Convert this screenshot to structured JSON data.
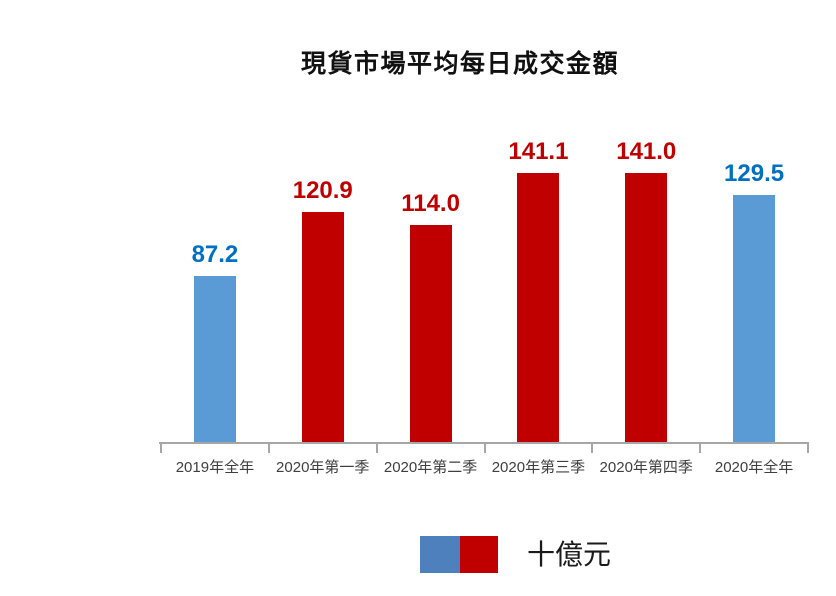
{
  "chart_data": {
    "type": "bar",
    "title": "現貨市場平均每日成交金額",
    "categories": [
      "2019年全年",
      "2020年第一季",
      "2020年第二季",
      "2020年第三季",
      "2020年第四季",
      "2020年全年"
    ],
    "values": [
      87.2,
      120.9,
      114.0,
      141.1,
      141.0,
      129.5
    ],
    "value_labels": [
      "87.2",
      "120.9",
      "114.0",
      "141.1",
      "141.0",
      "129.5"
    ],
    "point_series": [
      "annual",
      "quarter",
      "quarter",
      "quarter",
      "quarter",
      "annual"
    ],
    "series_colors": {
      "annual": {
        "bar": "#5B9BD5",
        "label": "#0070C0"
      },
      "quarter": {
        "bar": "#C00000",
        "label": "#C00000"
      }
    },
    "legend": {
      "label": "十億元",
      "swatch_colors": [
        "#4E80BD",
        "#C00000"
      ],
      "position": "bottom-center"
    },
    "axis": {
      "color": "#A6A6A6",
      "ylim": [
        0,
        150
      ],
      "grid": false,
      "y_axis_visible": false,
      "tick_marks": "outside"
    },
    "xlabel": "",
    "ylabel": ""
  }
}
